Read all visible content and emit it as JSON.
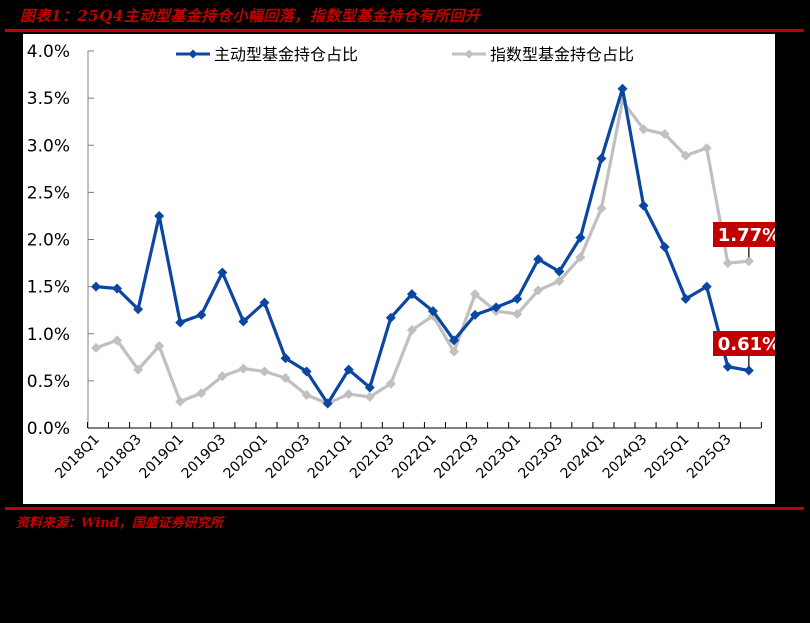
{
  "header": {
    "title": "图表1：25Q4主动型基金持仓小幅回落，指数型基金持仓有所回升"
  },
  "footer": {
    "source": "资料来源：Wind，国盛证券研究所"
  },
  "colors": {
    "accent_red": "#c00000",
    "active_series": "#0b47a1",
    "index_series": "#c0c0c0",
    "axis": "#7f7f7f"
  },
  "chart_data": {
    "type": "line",
    "title": "25Q4主动型基金持仓小幅回落，指数型基金持仓有所回升",
    "xlabel": "",
    "ylabel": "",
    "ylim": [
      0,
      4.0
    ],
    "yticks": [
      "0.0%",
      "0.5%",
      "1.0%",
      "1.5%",
      "2.0%",
      "2.5%",
      "3.0%",
      "3.5%",
      "4.0%"
    ],
    "grid": false,
    "legend_position": "top",
    "x": [
      "2018Q1",
      "2018Q2",
      "2018Q3",
      "2018Q4",
      "2019Q1",
      "2019Q2",
      "2019Q3",
      "2019Q4",
      "2020Q1",
      "2020Q2",
      "2020Q3",
      "2020Q4",
      "2021Q1",
      "2021Q2",
      "2021Q3",
      "2021Q4",
      "2022Q1",
      "2022Q2",
      "2022Q3",
      "2022Q4",
      "2023Q1",
      "2023Q2",
      "2023Q3",
      "2023Q4",
      "2024Q1",
      "2024Q2",
      "2024Q3",
      "2024Q4",
      "2025Q1",
      "2025Q2",
      "2025Q3",
      "2025Q4"
    ],
    "x_tick_labels": [
      "2018Q1",
      "2018Q3",
      "2019Q1",
      "2019Q3",
      "2020Q1",
      "2020Q3",
      "2021Q1",
      "2021Q3",
      "2022Q1",
      "2022Q3",
      "2023Q1",
      "2023Q3",
      "2024Q1",
      "2024Q3",
      "2025Q1",
      "2025Q3"
    ],
    "series": [
      {
        "name": "主动型基金持仓占比",
        "unit": "%",
        "color": "#0b47a1",
        "values": [
          1.5,
          1.48,
          1.26,
          2.25,
          1.12,
          1.2,
          1.65,
          1.13,
          1.33,
          0.74,
          0.6,
          0.26,
          0.62,
          0.43,
          1.17,
          1.42,
          1.24,
          0.93,
          1.2,
          1.28,
          1.37,
          1.79,
          1.66,
          2.02,
          2.86,
          3.6,
          2.36,
          1.92,
          1.37,
          1.5,
          0.65,
          0.61
        ]
      },
      {
        "name": "指数型基金持仓占比",
        "unit": "%",
        "color": "#c0c0c0",
        "values": [
          0.85,
          0.93,
          0.62,
          0.87,
          0.28,
          0.37,
          0.55,
          0.63,
          0.6,
          0.53,
          0.35,
          0.26,
          0.36,
          0.33,
          0.47,
          1.04,
          1.19,
          0.81,
          1.42,
          1.24,
          1.21,
          1.46,
          1.56,
          1.81,
          2.33,
          3.47,
          3.17,
          3.12,
          2.89,
          2.97,
          1.75,
          1.77
        ]
      }
    ],
    "annotations": [
      {
        "text": "1.77%",
        "series": "指数型基金持仓占比",
        "point": "2025Q4"
      },
      {
        "text": "0.61%",
        "series": "主动型基金持仓占比",
        "point": "2025Q4"
      }
    ]
  }
}
